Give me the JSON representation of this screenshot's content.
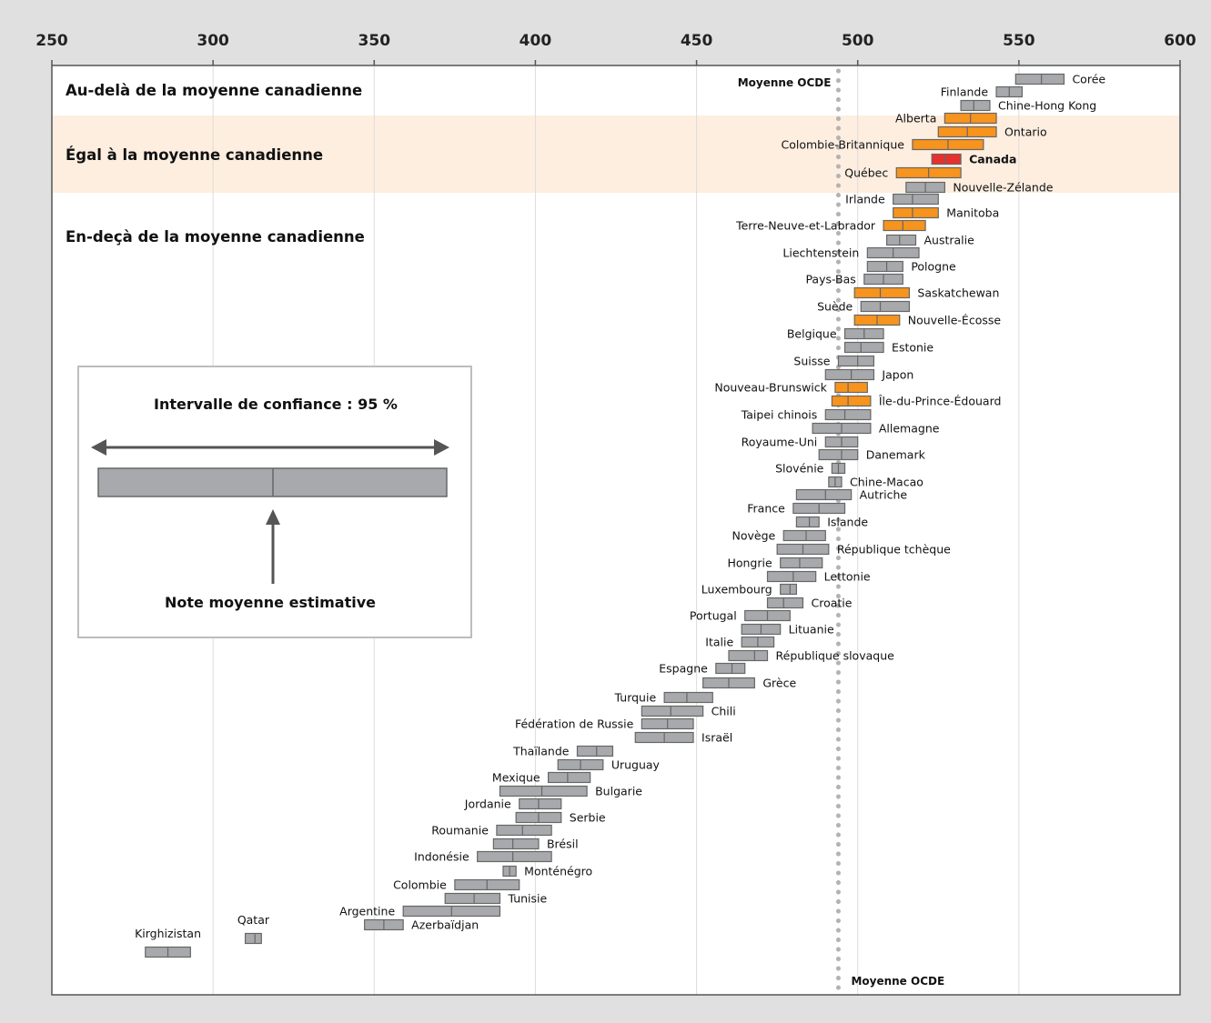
{
  "chart_data": {
    "type": "interval",
    "x_axis": {
      "range": [
        250,
        600
      ],
      "ticks": [
        250,
        300,
        350,
        400,
        450,
        500,
        550,
        600
      ],
      "position": "top",
      "grid": true
    },
    "bands": [
      {
        "label": "Au-delà de la moyenne canadienne",
        "color": "#ffffff"
      },
      {
        "label": "Égal à la moyenne canadienne",
        "color": "#fdeee0"
      },
      {
        "label": "En-deçà de la moyenne canadienne",
        "color": "#ffffff"
      }
    ],
    "oecd_average": {
      "value": 494,
      "label_top": "Moyenne OCDE",
      "label_bottom": "Moyenne OCDE"
    },
    "colors": {
      "country": "#a7a9ac",
      "province": "#f7941d",
      "canada": "#e8312f",
      "outline": "#666666"
    },
    "legend_box": {
      "title": "Intervalle de confiance : 95 %",
      "caption": "Note moyenne estimative"
    },
    "series": [
      {
        "name": "Corée",
        "mean": 557,
        "low": 549,
        "high": 564,
        "type": "country"
      },
      {
        "name": "Finlande",
        "mean": 547,
        "low": 543,
        "high": 551,
        "type": "country"
      },
      {
        "name": "Chine-Hong Kong",
        "mean": 536,
        "low": 532,
        "high": 541,
        "type": "country"
      },
      {
        "name": "Alberta",
        "mean": 535,
        "low": 527,
        "high": 543,
        "type": "province"
      },
      {
        "name": "Ontario",
        "mean": 534,
        "low": 525,
        "high": 543,
        "type": "province"
      },
      {
        "name": "Colombie-Britannique",
        "mean": 528,
        "low": 517,
        "high": 539,
        "type": "province"
      },
      {
        "name": "Canada",
        "mean": 527,
        "low": 523,
        "high": 532,
        "type": "canada"
      },
      {
        "name": "Québec",
        "mean": 522,
        "low": 512,
        "high": 532,
        "type": "province"
      },
      {
        "name": "Nouvelle-Zélande",
        "mean": 521,
        "low": 515,
        "high": 527,
        "type": "country"
      },
      {
        "name": "Irlande",
        "mean": 517,
        "low": 511,
        "high": 525,
        "type": "country"
      },
      {
        "name": "Manitoba",
        "mean": 517,
        "low": 511,
        "high": 525,
        "type": "province"
      },
      {
        "name": "Terre-Neuve-et-Labrador",
        "mean": 514,
        "low": 508,
        "high": 521,
        "type": "province"
      },
      {
        "name": "Australie",
        "mean": 513,
        "low": 509,
        "high": 518,
        "type": "country"
      },
      {
        "name": "Liechtenstein",
        "mean": 511,
        "low": 503,
        "high": 519,
        "type": "country"
      },
      {
        "name": "Pologne",
        "mean": 509,
        "low": 503,
        "high": 514,
        "type": "country"
      },
      {
        "name": "Pays-Bas",
        "mean": 508,
        "low": 502,
        "high": 514,
        "type": "country"
      },
      {
        "name": "Saskatchewan",
        "mean": 507,
        "low": 499,
        "high": 516,
        "type": "province"
      },
      {
        "name": "Suède",
        "mean": 507,
        "low": 501,
        "high": 516,
        "type": "country"
      },
      {
        "name": "Nouvelle-Écosse",
        "mean": 506,
        "low": 499,
        "high": 513,
        "type": "province"
      },
      {
        "name": "Belgique",
        "mean": 502,
        "low": 496,
        "high": 508,
        "type": "country"
      },
      {
        "name": "Estonie",
        "mean": 501,
        "low": 496,
        "high": 508,
        "type": "country"
      },
      {
        "name": "Suisse",
        "mean": 500,
        "low": 494,
        "high": 505,
        "type": "country"
      },
      {
        "name": "Japon",
        "mean": 498,
        "low": 490,
        "high": 505,
        "type": "country"
      },
      {
        "name": "Nouveau-Brunswick",
        "mean": 497,
        "low": 493,
        "high": 503,
        "type": "province"
      },
      {
        "name": "Île-du-Prince-Édouard",
        "mean": 497,
        "low": 492,
        "high": 504,
        "type": "province"
      },
      {
        "name": "Taipei chinois",
        "mean": 496,
        "low": 490,
        "high": 504,
        "type": "country"
      },
      {
        "name": "Allemagne",
        "mean": 495,
        "low": 486,
        "high": 504,
        "type": "country"
      },
      {
        "name": "Royaume-Uni",
        "mean": 495,
        "low": 490,
        "high": 500,
        "type": "country"
      },
      {
        "name": "Danemark",
        "mean": 495,
        "low": 488,
        "high": 500,
        "type": "country"
      },
      {
        "name": "Slovénie",
        "mean": 494,
        "low": 492,
        "high": 496,
        "type": "country"
      },
      {
        "name": "Chine-Macao",
        "mean": 493,
        "low": 491,
        "high": 495,
        "type": "country"
      },
      {
        "name": "Autriche",
        "mean": 490,
        "low": 481,
        "high": 498,
        "type": "country"
      },
      {
        "name": "France",
        "mean": 488,
        "low": 480,
        "high": 496,
        "type": "country"
      },
      {
        "name": "Islande",
        "mean": 485,
        "low": 481,
        "high": 488,
        "type": "country"
      },
      {
        "name": "Novège",
        "mean": 484,
        "low": 477,
        "high": 490,
        "type": "country"
      },
      {
        "name": "République tchèque",
        "mean": 483,
        "low": 475,
        "high": 491,
        "type": "country"
      },
      {
        "name": "Hongrie",
        "mean": 482,
        "low": 476,
        "high": 489,
        "type": "country"
      },
      {
        "name": "Lettonie",
        "mean": 480,
        "low": 472,
        "high": 487,
        "type": "country"
      },
      {
        "name": "Luxembourg",
        "mean": 479,
        "low": 476,
        "high": 481,
        "type": "country"
      },
      {
        "name": "Croatie",
        "mean": 477,
        "low": 472,
        "high": 483,
        "type": "country"
      },
      {
        "name": "Portugal",
        "mean": 472,
        "low": 465,
        "high": 479,
        "type": "country"
      },
      {
        "name": "Lituanie",
        "mean": 470,
        "low": 464,
        "high": 476,
        "type": "country"
      },
      {
        "name": "Italie",
        "mean": 469,
        "low": 464,
        "high": 474,
        "type": "country"
      },
      {
        "name": "République slovaque",
        "mean": 468,
        "low": 460,
        "high": 472,
        "type": "country"
      },
      {
        "name": "Espagne",
        "mean": 461,
        "low": 456,
        "high": 465,
        "type": "country"
      },
      {
        "name": "Grèce",
        "mean": 460,
        "low": 452,
        "high": 468,
        "type": "country"
      },
      {
        "name": "Turquie",
        "mean": 447,
        "low": 440,
        "high": 455,
        "type": "country"
      },
      {
        "name": "Chili",
        "mean": 442,
        "low": 433,
        "high": 452,
        "type": "country"
      },
      {
        "name": "Fédération de Russie",
        "mean": 441,
        "low": 433,
        "high": 449,
        "type": "country"
      },
      {
        "name": "Israël",
        "mean": 440,
        "low": 431,
        "high": 449,
        "type": "country"
      },
      {
        "name": "Thaïlande",
        "mean": 419,
        "low": 413,
        "high": 424,
        "type": "country"
      },
      {
        "name": "Uruguay",
        "mean": 414,
        "low": 407,
        "high": 421,
        "type": "country"
      },
      {
        "name": "Mexique",
        "mean": 410,
        "low": 404,
        "high": 417,
        "type": "country"
      },
      {
        "name": "Bulgarie",
        "mean": 402,
        "low": 389,
        "high": 416,
        "type": "country"
      },
      {
        "name": "Jordanie",
        "mean": 401,
        "low": 395,
        "high": 408,
        "type": "country"
      },
      {
        "name": "Serbie",
        "mean": 401,
        "low": 394,
        "high": 408,
        "type": "country"
      },
      {
        "name": "Roumanie",
        "mean": 396,
        "low": 388,
        "high": 405,
        "type": "country"
      },
      {
        "name": "Brésil",
        "mean": 393,
        "low": 387,
        "high": 401,
        "type": "country"
      },
      {
        "name": "Indonésie",
        "mean": 393,
        "low": 382,
        "high": 405,
        "type": "country"
      },
      {
        "name": "Monténégro",
        "mean": 392,
        "low": 390,
        "high": 394,
        "type": "country"
      },
      {
        "name": "Colombie",
        "mean": 385,
        "low": 375,
        "high": 395,
        "type": "country"
      },
      {
        "name": "Tunisie",
        "mean": 381,
        "low": 372,
        "high": 389,
        "type": "country"
      },
      {
        "name": "Argentine",
        "mean": 374,
        "low": 359,
        "high": 389,
        "type": "country"
      },
      {
        "name": "Azerbaïdjan",
        "mean": 353,
        "low": 347,
        "high": 359,
        "type": "country"
      },
      {
        "name": "Qatar",
        "mean": 313,
        "low": 310,
        "high": 315,
        "type": "country"
      },
      {
        "name": "Kirghizistan",
        "mean": 286,
        "low": 279,
        "high": 293,
        "type": "country"
      }
    ]
  }
}
